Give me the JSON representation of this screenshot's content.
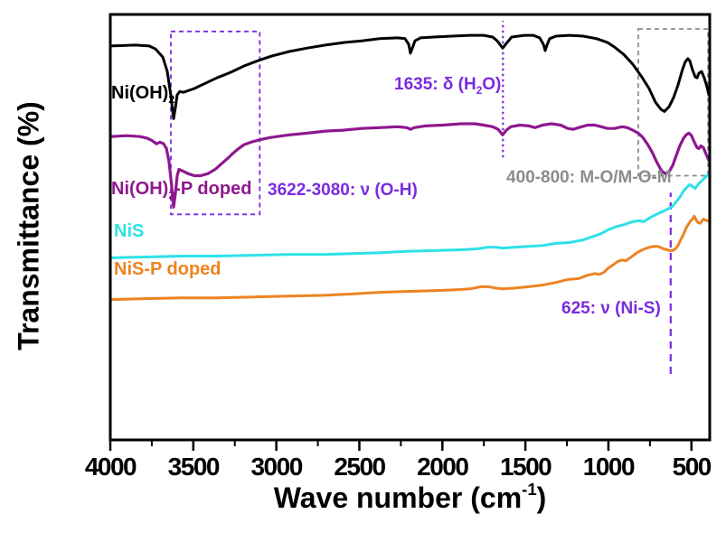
{
  "figure": {
    "ylabel": "Transmittance (%)",
    "xlabel": {
      "pre": "Wave number (cm",
      "sup": "-1",
      "post": ")"
    }
  },
  "curve_labels": {
    "ni_oh2": {
      "pre": "Ni(OH)",
      "sub": "2",
      "post": ""
    },
    "ni_oh2_p": {
      "pre": "Ni(OH)",
      "sub": "2",
      "post": "-P doped"
    },
    "nis": "NiS",
    "nis_p": "NiS-P doped"
  },
  "annotations": {
    "oh_stretch": "3622-3080: ν (O-H)",
    "h2o_bend": {
      "pre": "1635: δ (H",
      "sub": "2",
      "post": "O)"
    },
    "mo_band": "400-800: M-O/M-O-M",
    "nis_stretch": "625: ν (Ni-S)"
  },
  "colors": {
    "ni_oh2": "#000000",
    "ni_oh2_p": "#8e188e",
    "nis": "#2ee1e8",
    "nis_p": "#ee8322",
    "annotation_violet": "#7b2be0",
    "annotation_gray": "#8c8c8c",
    "axis": "#000000"
  },
  "chart_data": {
    "type": "line",
    "title": "",
    "xlabel": "Wave number (cm-1)",
    "ylabel": "Transmittance (%)",
    "x_axis_reversed": true,
    "x_range": [
      4000,
      392
    ],
    "x_ticks_major": [
      4000,
      3500,
      3000,
      2500,
      2000,
      1500,
      1000,
      500
    ],
    "x_ticks_minor": [
      3750,
      3250,
      2750,
      2250,
      1750,
      1250,
      750
    ],
    "y_axis": "arbitrary transmittance units 0-100, no ticks shown",
    "grid": false,
    "legend": "inline curve labels at left side of plot",
    "series": [
      {
        "name": "Ni(OH)2",
        "color": "#000000",
        "width": 3,
        "points": [
          [
            4000,
            92.6
          ],
          [
            3848,
            92.8
          ],
          [
            3766,
            92.6
          ],
          [
            3728,
            91.9
          ],
          [
            3684,
            90.0
          ],
          [
            3657,
            86.6
          ],
          [
            3635,
            80.9
          ],
          [
            3619,
            75.5
          ],
          [
            3608,
            78.1
          ],
          [
            3597,
            81.1
          ],
          [
            3581,
            81.9
          ],
          [
            3559,
            81.7
          ],
          [
            3494,
            82.6
          ],
          [
            3439,
            83.6
          ],
          [
            3358,
            85.1
          ],
          [
            3276,
            86.4
          ],
          [
            3194,
            87.9
          ],
          [
            3113,
            89.1
          ],
          [
            3031,
            90.2
          ],
          [
            2922,
            91.3
          ],
          [
            2813,
            92.1
          ],
          [
            2704,
            92.8
          ],
          [
            2595,
            93.4
          ],
          [
            2486,
            93.8
          ],
          [
            2378,
            94.3
          ],
          [
            2269,
            94.5
          ],
          [
            2225,
            94.3
          ],
          [
            2203,
            93.0
          ],
          [
            2192,
            90.9
          ],
          [
            2181,
            92.1
          ],
          [
            2165,
            93.8
          ],
          [
            2132,
            94.5
          ],
          [
            2051,
            94.7
          ],
          [
            1942,
            94.9
          ],
          [
            1833,
            95.1
          ],
          [
            1751,
            95.1
          ],
          [
            1697,
            94.7
          ],
          [
            1670,
            93.8
          ],
          [
            1637,
            92.1
          ],
          [
            1610,
            93.4
          ],
          [
            1583,
            94.7
          ],
          [
            1506,
            95.1
          ],
          [
            1452,
            95.1
          ],
          [
            1414,
            94.5
          ],
          [
            1392,
            93.0
          ],
          [
            1381,
            91.5
          ],
          [
            1370,
            92.8
          ],
          [
            1354,
            94.3
          ],
          [
            1316,
            94.9
          ],
          [
            1234,
            95.1
          ],
          [
            1152,
            94.9
          ],
          [
            1071,
            94.3
          ],
          [
            1005,
            93.4
          ],
          [
            962,
            92.3
          ],
          [
            907,
            90.6
          ],
          [
            853,
            88.3
          ],
          [
            799,
            85.3
          ],
          [
            755,
            82.6
          ],
          [
            717,
            79.4
          ],
          [
            684,
            77.7
          ],
          [
            663,
            77.2
          ],
          [
            635,
            78.3
          ],
          [
            608,
            80.4
          ],
          [
            581,
            83.4
          ],
          [
            554,
            87.0
          ],
          [
            537,
            88.9
          ],
          [
            521,
            89.6
          ],
          [
            510,
            89.1
          ],
          [
            494,
            87.0
          ],
          [
            477,
            85.3
          ],
          [
            466,
            85.1
          ],
          [
            455,
            86.2
          ],
          [
            439,
            86.6
          ],
          [
            423,
            85.1
          ],
          [
            406,
            83.0
          ],
          [
            395,
            81.1
          ]
        ]
      },
      {
        "name": "Ni(OH)2-P doped",
        "color": "#8e188e",
        "width": 3.2,
        "points": [
          [
            4000,
            71.3
          ],
          [
            3902,
            71.5
          ],
          [
            3820,
            71.3
          ],
          [
            3777,
            70.9
          ],
          [
            3750,
            70.4
          ],
          [
            3722,
            69.6
          ],
          [
            3701,
            70.0
          ],
          [
            3679,
            69.6
          ],
          [
            3662,
            68.5
          ],
          [
            3646,
            65.3
          ],
          [
            3630,
            59.6
          ],
          [
            3619,
            54.7
          ],
          [
            3608,
            57.9
          ],
          [
            3597,
            62.1
          ],
          [
            3586,
            63.6
          ],
          [
            3564,
            63.2
          ],
          [
            3532,
            62.6
          ],
          [
            3494,
            62.1
          ],
          [
            3456,
            62.1
          ],
          [
            3412,
            62.6
          ],
          [
            3368,
            63.6
          ],
          [
            3330,
            64.9
          ],
          [
            3292,
            66.2
          ],
          [
            3260,
            67.4
          ],
          [
            3227,
            68.5
          ],
          [
            3194,
            69.4
          ],
          [
            3151,
            70.0
          ],
          [
            3096,
            70.6
          ],
          [
            3031,
            71.1
          ],
          [
            2922,
            71.7
          ],
          [
            2813,
            72.1
          ],
          [
            2704,
            72.6
          ],
          [
            2595,
            72.8
          ],
          [
            2486,
            73.2
          ],
          [
            2378,
            73.4
          ],
          [
            2269,
            73.6
          ],
          [
            2214,
            73.4
          ],
          [
            2192,
            73.0
          ],
          [
            2170,
            73.4
          ],
          [
            2105,
            73.8
          ],
          [
            1996,
            74.0
          ],
          [
            1888,
            74.3
          ],
          [
            1806,
            74.3
          ],
          [
            1751,
            74.0
          ],
          [
            1697,
            73.6
          ],
          [
            1664,
            73.0
          ],
          [
            1637,
            71.7
          ],
          [
            1615,
            72.8
          ],
          [
            1588,
            73.6
          ],
          [
            1533,
            74.0
          ],
          [
            1479,
            73.8
          ],
          [
            1441,
            73.4
          ],
          [
            1397,
            74.0
          ],
          [
            1343,
            74.3
          ],
          [
            1288,
            74.0
          ],
          [
            1245,
            73.2
          ],
          [
            1212,
            73.0
          ],
          [
            1180,
            73.4
          ],
          [
            1125,
            74.0
          ],
          [
            1082,
            74.0
          ],
          [
            1043,
            73.6
          ],
          [
            1005,
            73.2
          ],
          [
            962,
            73.2
          ],
          [
            918,
            73.6
          ],
          [
            886,
            73.4
          ],
          [
            853,
            72.8
          ],
          [
            820,
            72.1
          ],
          [
            793,
            71.1
          ],
          [
            766,
            69.6
          ],
          [
            738,
            67.7
          ],
          [
            706,
            65.1
          ],
          [
            679,
            63.2
          ],
          [
            657,
            62.6
          ],
          [
            635,
            63.0
          ],
          [
            613,
            64.5
          ],
          [
            592,
            66.8
          ],
          [
            570,
            69.1
          ],
          [
            548,
            70.9
          ],
          [
            532,
            71.7
          ],
          [
            515,
            72.1
          ],
          [
            499,
            71.5
          ],
          [
            483,
            70.0
          ],
          [
            466,
            68.7
          ],
          [
            455,
            68.5
          ],
          [
            444,
            69.1
          ],
          [
            428,
            68.7
          ],
          [
            412,
            67.2
          ],
          [
            395,
            65.7
          ]
        ]
      },
      {
        "name": "NiS",
        "color": "#2ee1e8",
        "width": 3,
        "points": [
          [
            4000,
            42.8
          ],
          [
            3793,
            43.0
          ],
          [
            3575,
            43.2
          ],
          [
            3358,
            43.2
          ],
          [
            3140,
            43.4
          ],
          [
            2922,
            43.6
          ],
          [
            2704,
            43.6
          ],
          [
            2541,
            43.8
          ],
          [
            2378,
            44.0
          ],
          [
            2214,
            44.3
          ],
          [
            2051,
            44.5
          ],
          [
            1888,
            44.7
          ],
          [
            1790,
            44.9
          ],
          [
            1724,
            45.3
          ],
          [
            1681,
            45.3
          ],
          [
            1637,
            45.1
          ],
          [
            1561,
            45.3
          ],
          [
            1479,
            45.5
          ],
          [
            1397,
            45.7
          ],
          [
            1316,
            46.2
          ],
          [
            1234,
            46.4
          ],
          [
            1152,
            47.0
          ],
          [
            1087,
            47.9
          ],
          [
            1043,
            48.5
          ],
          [
            1000,
            49.4
          ],
          [
            962,
            50.0
          ],
          [
            907,
            50.6
          ],
          [
            853,
            51.3
          ],
          [
            815,
            51.5
          ],
          [
            788,
            51.3
          ],
          [
            755,
            52.1
          ],
          [
            722,
            52.8
          ],
          [
            690,
            53.4
          ],
          [
            657,
            54.0
          ],
          [
            630,
            54.5
          ],
          [
            613,
            54.9
          ],
          [
            592,
            56.0
          ],
          [
            570,
            57.0
          ],
          [
            548,
            58.5
          ],
          [
            527,
            59.4
          ],
          [
            510,
            60.0
          ],
          [
            494,
            59.6
          ],
          [
            477,
            59.1
          ],
          [
            461,
            60.0
          ],
          [
            439,
            60.9
          ],
          [
            417,
            61.7
          ],
          [
            401,
            62.3
          ]
        ]
      },
      {
        "name": "NiS-P doped",
        "color": "#ee8322",
        "width": 3,
        "points": [
          [
            4000,
            33.0
          ],
          [
            3793,
            33.2
          ],
          [
            3575,
            33.4
          ],
          [
            3358,
            33.4
          ],
          [
            3140,
            33.6
          ],
          [
            2922,
            33.8
          ],
          [
            2704,
            34.0
          ],
          [
            2541,
            34.3
          ],
          [
            2378,
            34.7
          ],
          [
            2214,
            34.9
          ],
          [
            2051,
            35.1
          ],
          [
            1915,
            35.3
          ],
          [
            1833,
            35.5
          ],
          [
            1768,
            36.0
          ],
          [
            1724,
            36.0
          ],
          [
            1681,
            35.7
          ],
          [
            1637,
            35.5
          ],
          [
            1561,
            35.7
          ],
          [
            1479,
            36.0
          ],
          [
            1397,
            36.4
          ],
          [
            1316,
            37.0
          ],
          [
            1245,
            37.7
          ],
          [
            1180,
            37.9
          ],
          [
            1125,
            38.7
          ],
          [
            1082,
            39.1
          ],
          [
            1054,
            38.9
          ],
          [
            1027,
            39.4
          ],
          [
            1000,
            40.4
          ],
          [
            973,
            41.1
          ],
          [
            946,
            41.9
          ],
          [
            918,
            42.3
          ],
          [
            897,
            42.1
          ],
          [
            869,
            42.8
          ],
          [
            842,
            43.6
          ],
          [
            815,
            44.3
          ],
          [
            782,
            44.9
          ],
          [
            749,
            45.3
          ],
          [
            722,
            45.5
          ],
          [
            706,
            45.5
          ],
          [
            690,
            45.3
          ],
          [
            668,
            44.9
          ],
          [
            646,
            44.7
          ],
          [
            630,
            44.5
          ],
          [
            613,
            44.5
          ],
          [
            597,
            44.9
          ],
          [
            581,
            45.7
          ],
          [
            565,
            47.0
          ],
          [
            548,
            48.3
          ],
          [
            532,
            49.8
          ],
          [
            515,
            50.9
          ],
          [
            504,
            51.5
          ],
          [
            494,
            51.9
          ],
          [
            483,
            52.6
          ],
          [
            472,
            51.7
          ],
          [
            461,
            51.1
          ],
          [
            450,
            50.9
          ],
          [
            439,
            51.3
          ],
          [
            428,
            51.9
          ],
          [
            417,
            51.7
          ],
          [
            406,
            51.5
          ],
          [
            395,
            51.5
          ]
        ]
      }
    ],
    "markers": [
      {
        "kind": "band",
        "label": "3622-3080 O-H region",
        "wn_from": 3635,
        "wn_to": 3100,
        "t_from": 53.0,
        "t_to": 96.0,
        "style": "boxdash",
        "color": "#7b2be0"
      },
      {
        "kind": "band",
        "label": "400-800 M-O/M-O-M region",
        "wn_from": 820,
        "wn_to": 400,
        "t_from": 62.1,
        "t_to": 96.6,
        "style": "boxdash",
        "color": "#8c8c8c"
      },
      {
        "kind": "vline",
        "label": "1635 delta H2O",
        "wn": 1635,
        "t_from": 66.4,
        "t_to": 98.5,
        "style": "dotted",
        "color": "#7b2be0"
      },
      {
        "kind": "vline",
        "label": "625 nu Ni-S",
        "wn": 625,
        "t_from": 15.5,
        "t_to": 58.1,
        "style": "dashed",
        "color": "#7b2be0"
      }
    ]
  }
}
